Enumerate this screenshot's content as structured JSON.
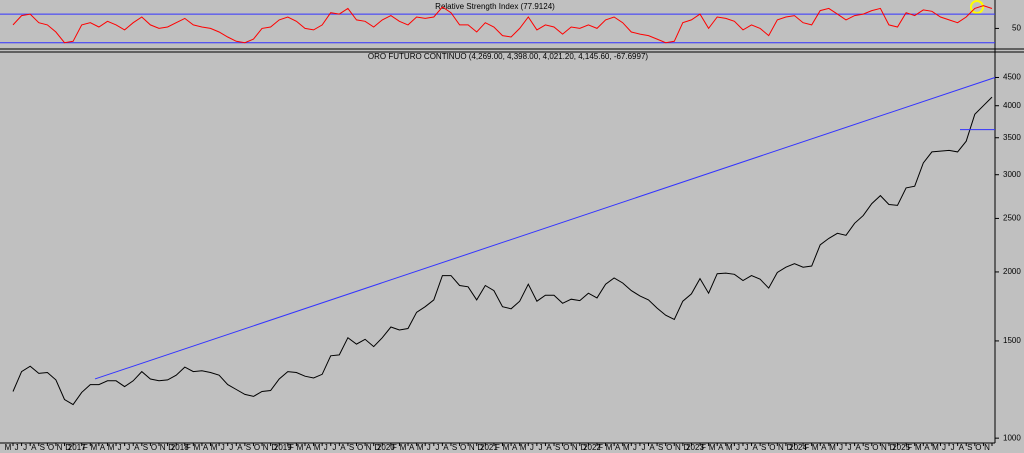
{
  "chart_data": [
    {
      "type": "line",
      "title": "Relative Strength Index (77.9124)",
      "ylim": [
        24,
        87
      ],
      "yticks": [
        50
      ],
      "levels": [
        70,
        30
      ],
      "level_color": "#3333ff",
      "series": [
        {
          "color": "#ff0000",
          "values": [
            55,
            68,
            70,
            58,
            55,
            45,
            30,
            32,
            55,
            58,
            52,
            60,
            55,
            48,
            58,
            66,
            55,
            50,
            52,
            58,
            64,
            55,
            52,
            50,
            45,
            38,
            32,
            30,
            35,
            50,
            52,
            62,
            66,
            60,
            50,
            48,
            55,
            72,
            70,
            78,
            62,
            60,
            52,
            62,
            68,
            60,
            55,
            66,
            64,
            66,
            80,
            72,
            55,
            55,
            45,
            58,
            52,
            40,
            38,
            50,
            66,
            48,
            55,
            52,
            42,
            52,
            50,
            55,
            50,
            62,
            66,
            58,
            45,
            42,
            40,
            35,
            30,
            32,
            58,
            62,
            70,
            50,
            66,
            64,
            60,
            48,
            55,
            50,
            40,
            62,
            66,
            68,
            58,
            55,
            75,
            78,
            70,
            62,
            68,
            70,
            75,
            78,
            55,
            52,
            72,
            68,
            76,
            74,
            66,
            62,
            58,
            66,
            78,
            82,
            77.9124
          ]
        }
      ]
    },
    {
      "type": "line",
      "title": "ORO FUTURO CONTINUO (4,269.00, 4,398.00, 4,021.20, 4,145.60, -67.6997)",
      "log_scale": true,
      "ylim": [
        980,
        4800
      ],
      "yticks": [
        1000,
        1500,
        2000,
        2500,
        3000,
        3500,
        4000,
        4500
      ],
      "categories": [
        "M",
        "J",
        "J",
        "A",
        "S",
        "O",
        "N",
        "D",
        "2017",
        "F",
        "M",
        "A",
        "M",
        "J",
        "J",
        "A",
        "S",
        "O",
        "N",
        "D",
        "2018",
        "F",
        "M",
        "A",
        "M",
        "J",
        "J",
        "A",
        "S",
        "O",
        "N",
        "D",
        "2019",
        "F",
        "M",
        "A",
        "M",
        "J",
        "J",
        "A",
        "S",
        "O",
        "N",
        "D",
        "2020",
        "F",
        "M",
        "A",
        "M",
        "J",
        "J",
        "A",
        "S",
        "O",
        "N",
        "D",
        "2021",
        "F",
        "M",
        "A",
        "M",
        "J",
        "J",
        "A",
        "S",
        "O",
        "N",
        "D",
        "2022",
        "F",
        "M",
        "A",
        "M",
        "J",
        "J",
        "A",
        "S",
        "O",
        "N",
        "D",
        "2023",
        "F",
        "M",
        "A",
        "M",
        "J",
        "J",
        "A",
        "S",
        "O",
        "N",
        "D",
        "2024",
        "F",
        "M",
        "A",
        "M",
        "J",
        "J",
        "A",
        "S",
        "O",
        "N",
        "D",
        "2025",
        "F",
        "M",
        "A",
        "M",
        "J",
        "J",
        "A",
        "S",
        "O",
        "N"
      ],
      "series": [
        {
          "color": "#000000",
          "values": [
            1215,
            1320,
            1350,
            1310,
            1315,
            1275,
            1175,
            1150,
            1210,
            1250,
            1250,
            1270,
            1270,
            1240,
            1270,
            1320,
            1280,
            1270,
            1275,
            1300,
            1345,
            1320,
            1325,
            1315,
            1300,
            1250,
            1225,
            1200,
            1190,
            1215,
            1220,
            1280,
            1320,
            1315,
            1295,
            1285,
            1305,
            1410,
            1415,
            1520,
            1480,
            1510,
            1465,
            1520,
            1590,
            1570,
            1580,
            1690,
            1730,
            1780,
            1970,
            1970,
            1890,
            1880,
            1780,
            1890,
            1850,
            1730,
            1715,
            1770,
            1900,
            1770,
            1815,
            1815,
            1755,
            1785,
            1775,
            1830,
            1795,
            1900,
            1950,
            1910,
            1850,
            1810,
            1780,
            1720,
            1670,
            1640,
            1770,
            1825,
            1945,
            1830,
            1985,
            1990,
            1980,
            1930,
            1970,
            1940,
            1870,
            1995,
            2040,
            2070,
            2040,
            2050,
            2240,
            2300,
            2350,
            2330,
            2450,
            2530,
            2660,
            2750,
            2650,
            2640,
            2840,
            2860,
            3150,
            3300,
            3310,
            3320,
            3300,
            3450,
            3860,
            4000,
            4145.6
          ]
        }
      ],
      "trendline": {
        "color": "#3333ff",
        "values": [
          1280,
          4500
        ]
      },
      "level": {
        "color": "#3333ff",
        "value": 3620
      }
    }
  ]
}
